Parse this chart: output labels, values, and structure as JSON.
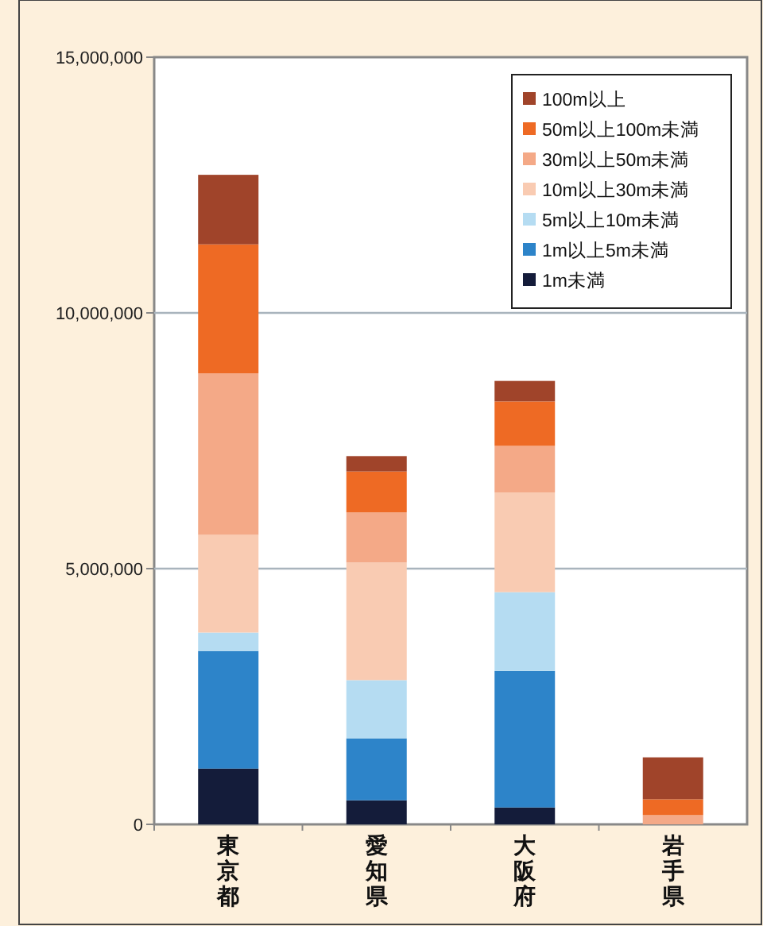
{
  "chart_data": {
    "type": "bar",
    "stacked": true,
    "categories": [
      "東京都",
      "愛知県",
      "大阪府",
      "岩手県"
    ],
    "series": [
      {
        "name": "1m未満",
        "color": "#141c3a",
        "values": [
          1090000,
          470000,
          330000,
          0
        ]
      },
      {
        "name": "1m以上5m未満",
        "color": "#2d84c9",
        "values": [
          2300000,
          1210000,
          2670000,
          0
        ]
      },
      {
        "name": "5m以上10m未満",
        "color": "#b5dcf2",
        "values": [
          360000,
          1140000,
          1540000,
          0
        ]
      },
      {
        "name": "10m以上30m未満",
        "color": "#f9cbb2",
        "values": [
          1910000,
          2300000,
          1950000,
          0
        ]
      },
      {
        "name": "30m以上50m未満",
        "color": "#f4a987",
        "values": [
          3160000,
          980000,
          910000,
          180000
        ]
      },
      {
        "name": "50m以上100m未満",
        "color": "#ee6a24",
        "values": [
          2520000,
          800000,
          870000,
          310000
        ]
      },
      {
        "name": "100m以上",
        "color": "#a0442a",
        "values": [
          1360000,
          300000,
          400000,
          820000
        ]
      }
    ],
    "ylim": [
      0,
      15000000
    ],
    "yticks": [
      {
        "value": 0,
        "label": "0"
      },
      {
        "value": 5000000,
        "label": "5,000,000"
      },
      {
        "value": 10000000,
        "label": "10,000,000"
      },
      {
        "value": 15000000,
        "label": "15,000,000"
      }
    ],
    "grid": "y",
    "legend": "top right"
  }
}
